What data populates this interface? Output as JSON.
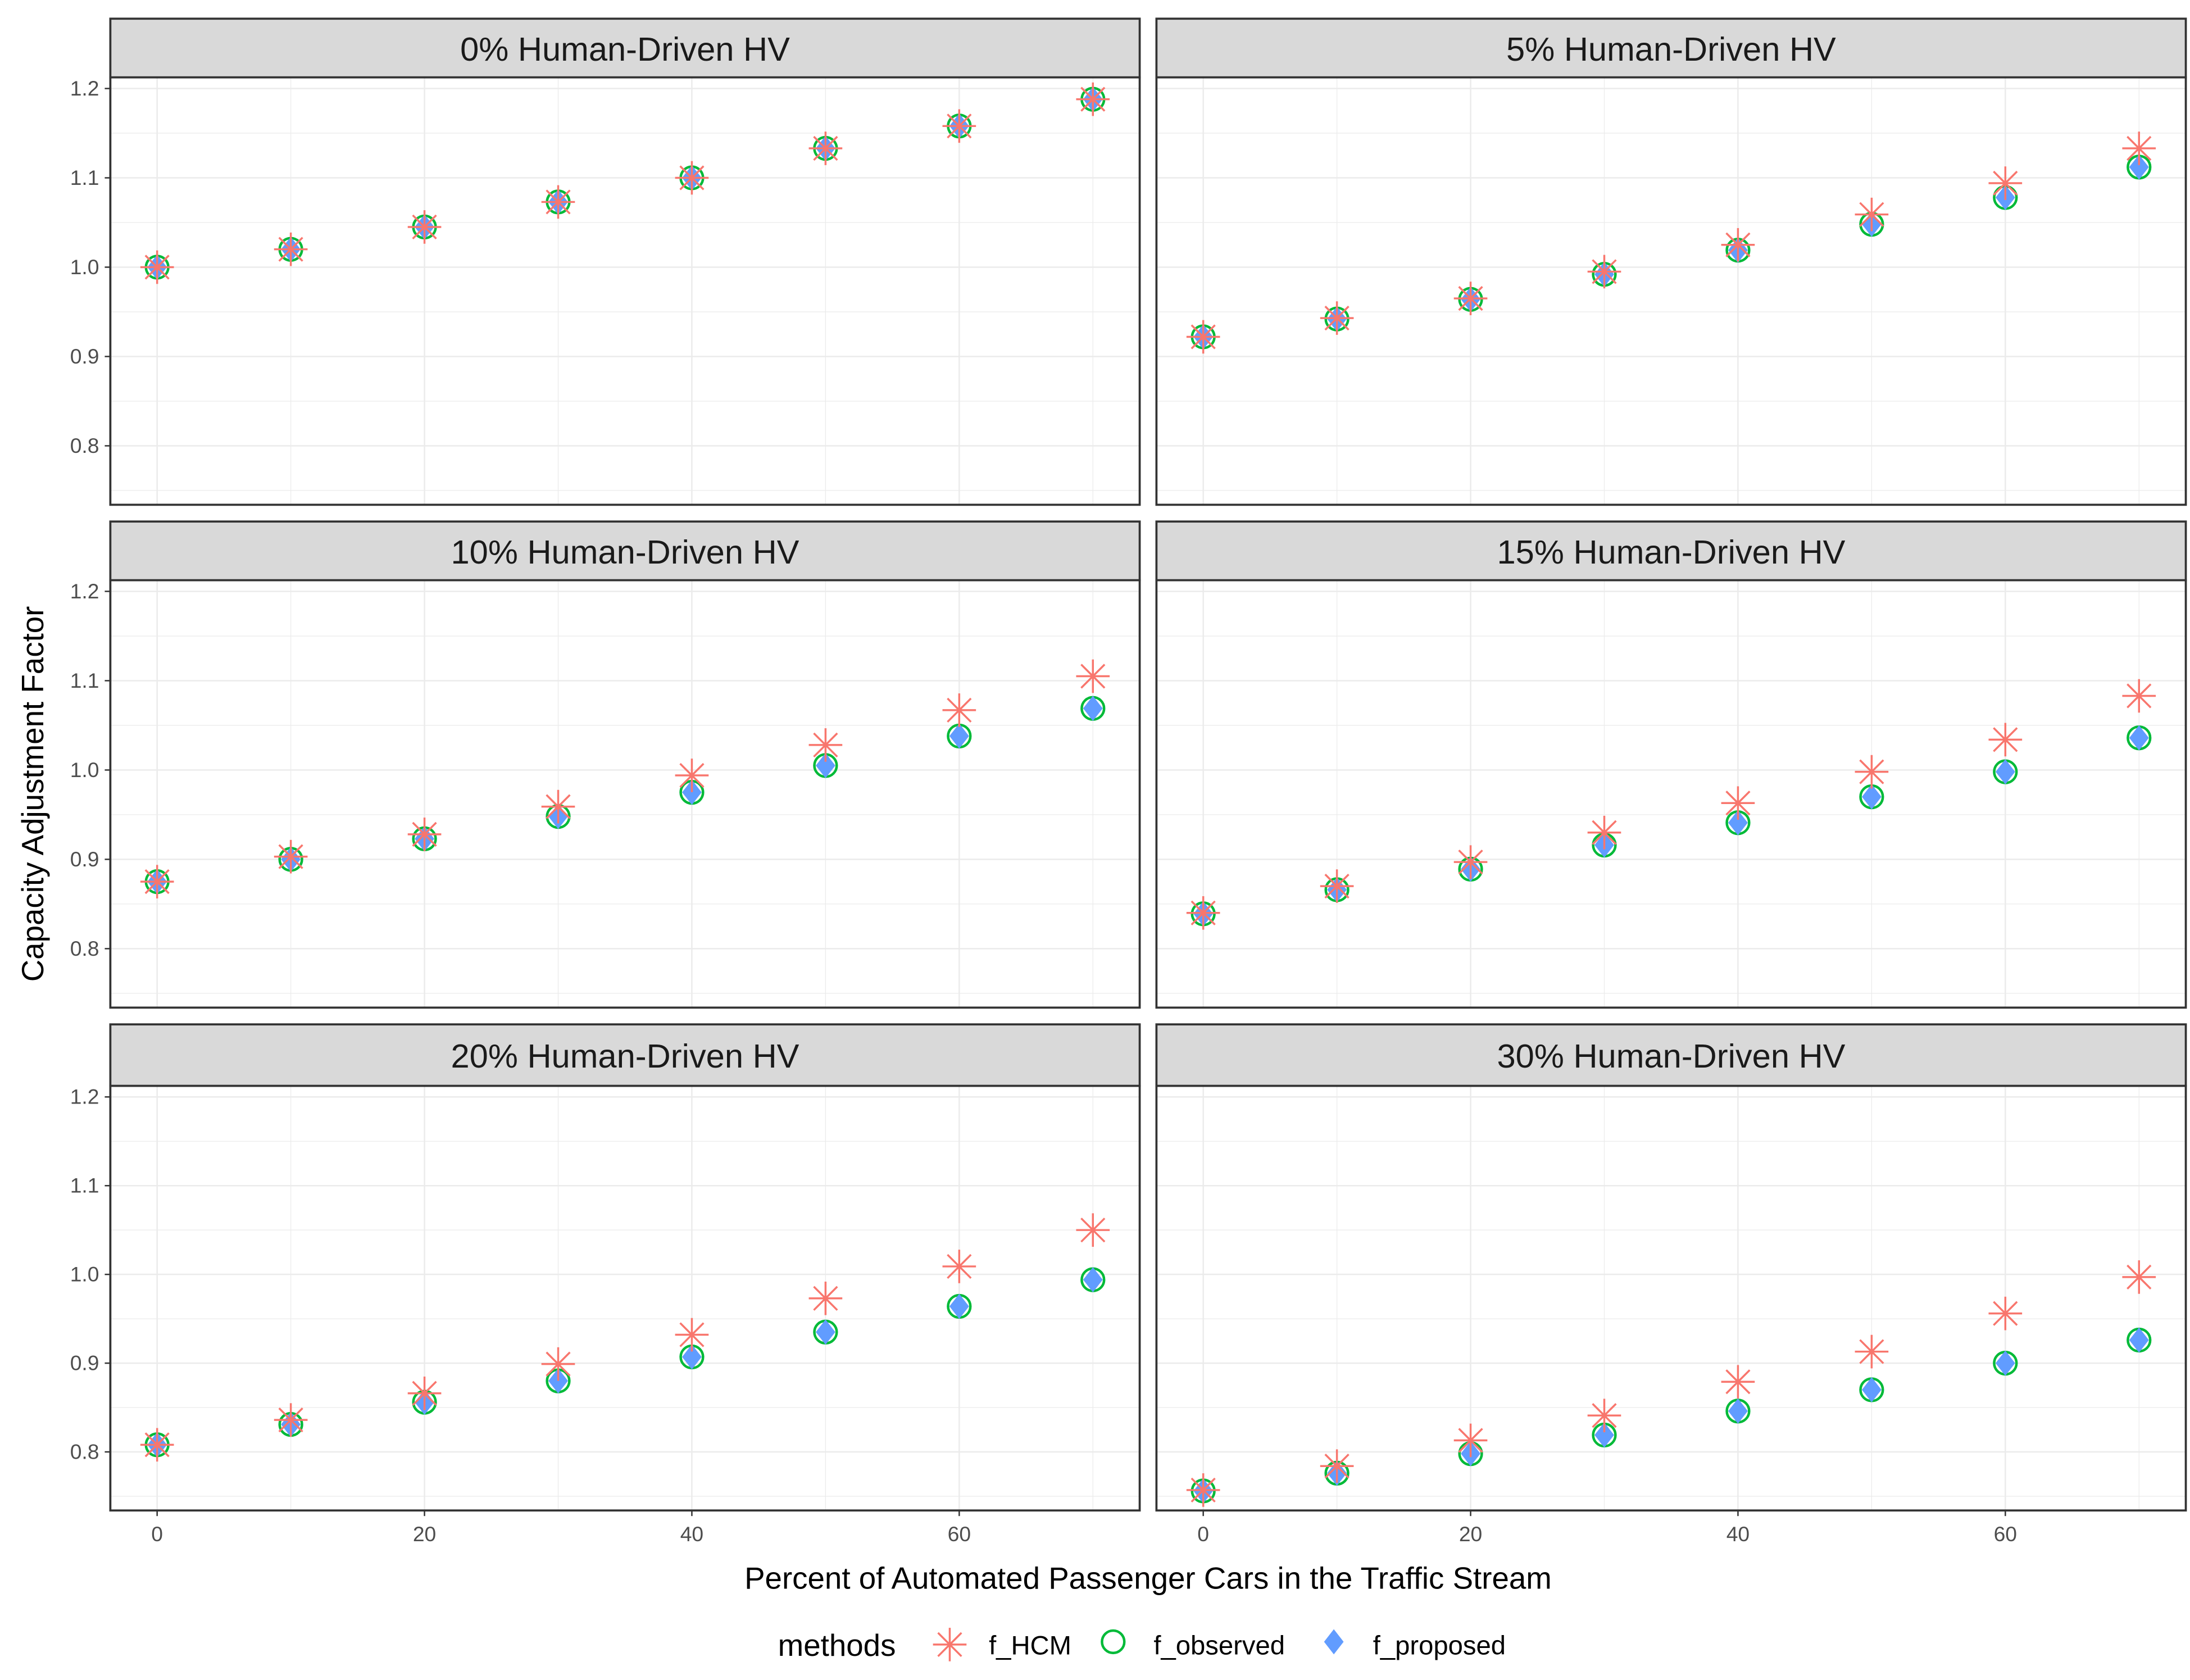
{
  "chart_data": {
    "type": "scatter",
    "facet_layout": "3 rows x 2 columns",
    "xlabel": "Percent of Automated Passenger Cars in the Traffic Stream",
    "ylabel": "Capacity Adjustment Factor",
    "xlim": [
      -3.5,
      73.5
    ],
    "ylim": [
      0.734,
      1.2125
    ],
    "x_ticks": [
      0,
      20,
      40,
      60
    ],
    "y_ticks": [
      0.8,
      0.9,
      1.0,
      1.1,
      1.2
    ],
    "grid": true,
    "legend": {
      "title": "methods",
      "placement": "bottom",
      "entries": [
        {
          "name": "f_HCM",
          "shape": "asterisk",
          "color": "#F8766D"
        },
        {
          "name": "f_observed",
          "shape": "open-circle",
          "color": "#00BA38"
        },
        {
          "name": "f_proposed",
          "shape": "filled-diamond",
          "color": "#619CFF"
        }
      ]
    },
    "x": [
      0,
      10,
      20,
      30,
      40,
      50,
      60,
      70
    ],
    "panels": [
      {
        "title": "0% Human-Driven HV",
        "series": [
          {
            "name": "f_HCM",
            "values": [
              1.0,
              1.02,
              1.045,
              1.073,
              1.1,
              1.133,
              1.158,
              1.188
            ]
          },
          {
            "name": "f_observed",
            "values": [
              1.0,
              1.02,
              1.045,
              1.073,
              1.1,
              1.133,
              1.158,
              1.188
            ]
          },
          {
            "name": "f_proposed",
            "values": [
              1.0,
              1.02,
              1.045,
              1.073,
              1.1,
              1.133,
              1.158,
              1.188
            ]
          }
        ]
      },
      {
        "title": "5% Human-Driven HV",
        "series": [
          {
            "name": "f_HCM",
            "values": [
              0.922,
              0.943,
              0.965,
              0.995,
              1.025,
              1.059,
              1.094,
              1.133
            ]
          },
          {
            "name": "f_observed",
            "values": [
              0.922,
              0.942,
              0.964,
              0.992,
              1.019,
              1.048,
              1.078,
              1.112
            ]
          },
          {
            "name": "f_proposed",
            "values": [
              0.922,
              0.942,
              0.964,
              0.992,
              1.019,
              1.048,
              1.078,
              1.112
            ]
          }
        ]
      },
      {
        "title": "10% Human-Driven HV",
        "series": [
          {
            "name": "f_HCM",
            "values": [
              0.875,
              0.903,
              0.928,
              0.959,
              0.994,
              1.028,
              1.067,
              1.105
            ]
          },
          {
            "name": "f_observed",
            "values": [
              0.875,
              0.9,
              0.923,
              0.948,
              0.975,
              1.005,
              1.038,
              1.069
            ]
          },
          {
            "name": "f_proposed",
            "values": [
              0.875,
              0.9,
              0.923,
              0.948,
              0.975,
              1.005,
              1.038,
              1.069
            ]
          }
        ]
      },
      {
        "title": "15% Human-Driven HV",
        "series": [
          {
            "name": "f_HCM",
            "values": [
              0.84,
              0.87,
              0.897,
              0.93,
              0.963,
              0.998,
              1.034,
              1.083
            ]
          },
          {
            "name": "f_observed",
            "values": [
              0.839,
              0.866,
              0.889,
              0.916,
              0.941,
              0.97,
              0.998,
              1.036
            ]
          },
          {
            "name": "f_proposed",
            "values": [
              0.839,
              0.866,
              0.889,
              0.916,
              0.941,
              0.97,
              0.998,
              1.036
            ]
          }
        ]
      },
      {
        "title": "20% Human-Driven HV",
        "series": [
          {
            "name": "f_HCM",
            "values": [
              0.808,
              0.836,
              0.866,
              0.899,
              0.932,
              0.973,
              1.009,
              1.05
            ]
          },
          {
            "name": "f_observed",
            "values": [
              0.808,
              0.831,
              0.856,
              0.88,
              0.907,
              0.935,
              0.964,
              0.994
            ]
          },
          {
            "name": "f_proposed",
            "values": [
              0.808,
              0.831,
              0.856,
              0.88,
              0.907,
              0.935,
              0.964,
              0.994
            ]
          }
        ]
      },
      {
        "title": "30% Human-Driven HV",
        "series": [
          {
            "name": "f_HCM",
            "values": [
              0.757,
              0.784,
              0.813,
              0.841,
              0.879,
              0.913,
              0.956,
              0.997
            ]
          },
          {
            "name": "f_observed",
            "values": [
              0.756,
              0.776,
              0.798,
              0.819,
              0.846,
              0.87,
              0.9,
              0.926
            ]
          },
          {
            "name": "f_proposed",
            "values": [
              0.756,
              0.776,
              0.798,
              0.819,
              0.846,
              0.87,
              0.9,
              0.926
            ]
          }
        ]
      }
    ]
  }
}
